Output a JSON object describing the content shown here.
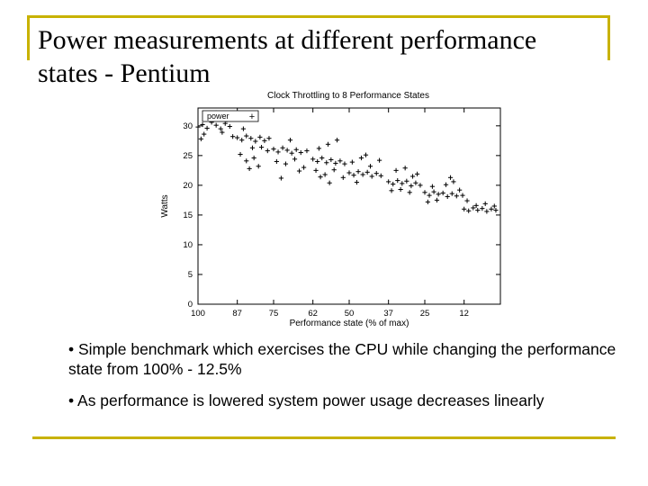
{
  "slide": {
    "title": "Power measurements at different performance states - Pentium",
    "bullets": [
      "• Simple benchmark which exercises the CPU while changing the performance state from 100% - 12.5%",
      "• As performance is lowered system power usage decreases linearly"
    ],
    "accent_color": "#c8b200"
  },
  "chart_data": {
    "type": "scatter",
    "title": "Clock Throttling to 8 Performance States",
    "xlabel": "Performance state (% of max)",
    "ylabel": "Watts",
    "x_tick_labels": [
      "100",
      "87",
      "75",
      "62",
      "50",
      "37",
      "25",
      "12"
    ],
    "y_ticks": [
      0,
      5,
      10,
      15,
      20,
      25,
      30
    ],
    "ylim": [
      0,
      33
    ],
    "legend": {
      "label": "power",
      "position": "top-left",
      "marker": "+"
    },
    "grid": false,
    "series": [
      {
        "name": "power",
        "marker": "+",
        "color": "#000000",
        "points": [
          [
            100,
            29.8
          ],
          [
            98.5,
            30.2
          ],
          [
            97,
            29.6
          ],
          [
            95.5,
            30.6
          ],
          [
            94,
            30.1
          ],
          [
            92.5,
            29.5
          ],
          [
            91,
            30.4
          ],
          [
            89.5,
            29.9
          ],
          [
            98,
            28.6
          ],
          [
            95,
            31.4
          ],
          [
            92,
            28.9
          ],
          [
            99,
            27.8
          ],
          [
            94,
            32.2
          ],
          [
            90.5,
            31.0
          ],
          [
            88.5,
            28.2
          ],
          [
            87,
            28.0
          ],
          [
            85.5,
            27.6
          ],
          [
            84,
            28.3
          ],
          [
            82.5,
            27.9
          ],
          [
            81,
            27.4
          ],
          [
            79.5,
            28.1
          ],
          [
            78,
            27.5
          ],
          [
            76.5,
            27.9
          ],
          [
            86,
            25.2
          ],
          [
            84,
            24.1
          ],
          [
            82,
            26.3
          ],
          [
            80,
            23.2
          ],
          [
            77,
            25.8
          ],
          [
            85,
            29.5
          ],
          [
            79,
            26.4
          ],
          [
            81.5,
            24.6
          ],
          [
            83,
            22.8
          ],
          [
            75,
            26.1
          ],
          [
            73.5,
            25.6
          ],
          [
            72,
            26.3
          ],
          [
            70.5,
            25.9
          ],
          [
            69,
            25.4
          ],
          [
            67.5,
            26.0
          ],
          [
            66,
            25.5
          ],
          [
            64,
            25.8
          ],
          [
            74,
            24.0
          ],
          [
            71,
            23.6
          ],
          [
            68,
            24.4
          ],
          [
            65,
            23.0
          ],
          [
            72.5,
            21.2
          ],
          [
            69.5,
            27.6
          ],
          [
            66.5,
            22.4
          ],
          [
            62,
            24.4
          ],
          [
            60.5,
            24.0
          ],
          [
            59,
            24.6
          ],
          [
            57.5,
            23.8
          ],
          [
            56,
            24.3
          ],
          [
            54.5,
            23.7
          ],
          [
            53,
            24.1
          ],
          [
            51.5,
            23.6
          ],
          [
            61,
            22.5
          ],
          [
            58,
            21.8
          ],
          [
            55,
            22.6
          ],
          [
            52,
            21.3
          ],
          [
            60,
            26.2
          ],
          [
            57,
            26.9
          ],
          [
            54,
            27.6
          ],
          [
            56.5,
            20.4
          ],
          [
            59.5,
            21.4
          ],
          [
            50,
            22.1
          ],
          [
            48.5,
            21.7
          ],
          [
            47,
            22.3
          ],
          [
            45.5,
            21.8
          ],
          [
            44,
            22.2
          ],
          [
            42.5,
            21.5
          ],
          [
            41,
            22.0
          ],
          [
            39.5,
            21.6
          ],
          [
            49,
            23.9
          ],
          [
            46,
            24.6
          ],
          [
            43,
            23.2
          ],
          [
            40,
            24.2
          ],
          [
            47.5,
            20.5
          ],
          [
            44.5,
            25.1
          ],
          [
            37,
            20.6
          ],
          [
            35.5,
            20.2
          ],
          [
            34,
            20.8
          ],
          [
            32.5,
            20.3
          ],
          [
            31,
            20.7
          ],
          [
            29.5,
            19.9
          ],
          [
            28,
            20.4
          ],
          [
            26.5,
            20.0
          ],
          [
            36,
            19.1
          ],
          [
            33,
            19.3
          ],
          [
            30,
            18.8
          ],
          [
            27.5,
            21.9
          ],
          [
            34.5,
            22.5
          ],
          [
            31.5,
            22.9
          ],
          [
            29,
            21.5
          ],
          [
            25,
            18.8
          ],
          [
            23.5,
            18.3
          ],
          [
            22,
            18.9
          ],
          [
            20.5,
            18.5
          ],
          [
            19,
            18.7
          ],
          [
            17.5,
            18.1
          ],
          [
            16,
            18.6
          ],
          [
            14.5,
            18.2
          ],
          [
            24,
            17.2
          ],
          [
            21,
            17.5
          ],
          [
            18,
            20.1
          ],
          [
            16.5,
            21.3
          ],
          [
            15.5,
            20.6
          ],
          [
            22.5,
            19.8
          ],
          [
            13.5,
            19.2
          ],
          [
            12,
            16.0
          ],
          [
            10.5,
            15.7
          ],
          [
            9,
            16.2
          ],
          [
            7.5,
            15.8
          ],
          [
            6,
            16.1
          ],
          [
            4.5,
            15.6
          ],
          [
            3,
            16.0
          ],
          [
            1.5,
            15.8
          ],
          [
            11,
            17.4
          ],
          [
            8,
            16.6
          ],
          [
            5,
            16.9
          ],
          [
            2,
            16.5
          ],
          [
            12.5,
            18.3
          ]
        ]
      }
    ]
  }
}
